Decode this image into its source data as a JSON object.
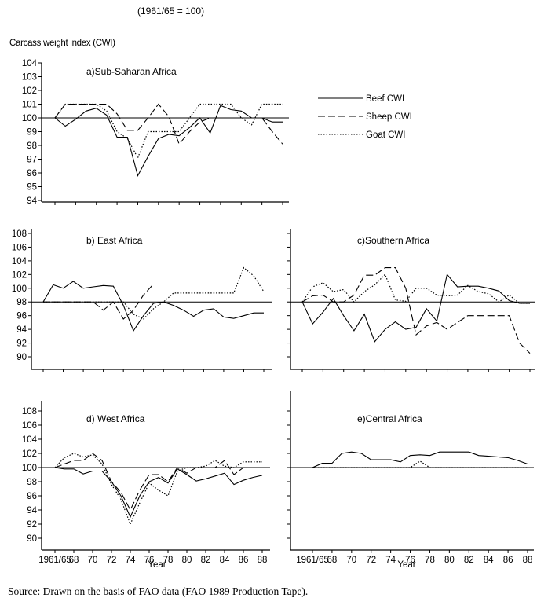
{
  "subtitle": "(1961/65 = 100)",
  "ylabel": "Carcass weight index (CWI)",
  "source": "Source: Drawn on the basis of FAO data (FAO 1989 Production Tape).",
  "legend": [
    {
      "name": "Beef CWI",
      "style": "solid"
    },
    {
      "name": "Sheep CWI",
      "style": "dashed"
    },
    {
      "name": "Goat CWI",
      "style": "dotted"
    }
  ],
  "chart_data": [
    {
      "type": "line",
      "title": "a)Sub-Saharan Africa",
      "xlabel": "",
      "ylabel": "Carcass weight index (CWI)",
      "ylim": [
        94,
        104
      ],
      "yticks": [
        "94",
        "95",
        "96",
        "97",
        "98",
        "99",
        "100",
        "101",
        "102",
        "103",
        "104"
      ],
      "reference": 100,
      "x": [
        1966,
        1967,
        1968,
        1969,
        1970,
        1971,
        1972,
        1973,
        1974,
        1975,
        1976,
        1977,
        1978,
        1979,
        1980,
        1981,
        1982,
        1983,
        1984,
        1985,
        1986,
        1987,
        1988
      ],
      "xticklabels": [],
      "series": [
        {
          "name": "Beef CWI",
          "values": [
            100,
            99.4,
            99.9,
            100.5,
            100.7,
            100.2,
            98.6,
            98.6,
            95.8,
            97.2,
            98.5,
            98.8,
            98.7,
            99.3,
            100,
            98.9,
            100.9,
            100.6,
            100.5,
            100,
            100,
            99.7,
            99.7
          ]
        },
        {
          "name": "Sheep CWI",
          "values": [
            100,
            101,
            101,
            101,
            101,
            101,
            100.3,
            99.1,
            99.1,
            100,
            101,
            100.1,
            98.1,
            99,
            99.7,
            100,
            100,
            100,
            100,
            100,
            100,
            99,
            98.1
          ]
        },
        {
          "name": "Goat CWI",
          "values": [
            100,
            101,
            101,
            101,
            101,
            100.5,
            99,
            98.5,
            97.1,
            99,
            99,
            99,
            99,
            100,
            101,
            101,
            101,
            101,
            100,
            99.5,
            101,
            101,
            101
          ]
        }
      ]
    },
    {
      "type": "line",
      "title": "b) East Africa",
      "xlabel": "",
      "ylim": [
        90,
        108
      ],
      "yticks": [
        "90",
        "92",
        "94",
        "96",
        "98",
        "100",
        "102",
        "104",
        "106",
        "108"
      ],
      "reference": 98,
      "x": [
        1966,
        1967,
        1968,
        1969,
        1970,
        1971,
        1972,
        1973,
        1974,
        1975,
        1976,
        1977,
        1978,
        1979,
        1980,
        1981,
        1982,
        1983,
        1984,
        1985,
        1986,
        1987,
        1988
      ],
      "xticklabels": [],
      "series": [
        {
          "name": "Beef CWI",
          "values": [
            98,
            100.5,
            100,
            101,
            100,
            100.2,
            100.4,
            100.3,
            97.5,
            93.8,
            96,
            97.8,
            98,
            97.5,
            96.8,
            95.9,
            96.8,
            97,
            95.8,
            95.6,
            96,
            96.4,
            96.4
          ]
        },
        {
          "name": "Sheep CWI",
          "values": [
            98,
            98,
            98,
            98,
            98,
            98,
            96.8,
            98,
            95.5,
            96.8,
            99,
            100.6,
            100.6,
            100.6,
            100.6,
            100.6,
            100.6,
            100.6,
            100.6,
            null,
            null,
            null,
            null
          ]
        },
        {
          "name": "Goat CWI",
          "values": [
            98,
            98,
            98,
            98,
            98,
            98,
            98,
            98,
            98,
            96.2,
            95.5,
            97,
            98,
            99.3,
            99.3,
            99.3,
            99.3,
            99.3,
            99.3,
            99.3,
            103,
            101.8,
            99.5
          ]
        }
      ]
    },
    {
      "type": "line",
      "title": "c)Southern Africa",
      "xlabel": "",
      "ylim": [
        90,
        108
      ],
      "yticks": [],
      "reference": 98,
      "x": [
        1966,
        1967,
        1968,
        1969,
        1970,
        1971,
        1972,
        1973,
        1974,
        1975,
        1976,
        1977,
        1978,
        1979,
        1980,
        1981,
        1982,
        1983,
        1984,
        1985,
        1986,
        1987,
        1988
      ],
      "xticklabels": [],
      "series": [
        {
          "name": "Beef CWI",
          "values": [
            98,
            94.8,
            96.5,
            98.5,
            96,
            93.8,
            96.2,
            92.2,
            94,
            95.1,
            94,
            94.3,
            97,
            95.2,
            102,
            100.2,
            100.3,
            100.3,
            100,
            99.6,
            98.2,
            97.8,
            97.8
          ]
        },
        {
          "name": "Sheep CWI",
          "values": [
            98,
            98.9,
            99,
            98,
            98,
            99,
            101.9,
            101.9,
            103,
            103,
            100,
            93.2,
            94.5,
            95,
            94,
            95,
            96,
            96,
            96,
            96,
            96,
            92,
            90.5
          ]
        },
        {
          "name": "Goat CWI",
          "values": [
            98,
            100.2,
            100.8,
            99.5,
            99.8,
            98,
            99.5,
            100.5,
            102,
            98.3,
            98.1,
            100,
            100,
            99,
            98.9,
            99,
            100.4,
            99.5,
            99.2,
            98,
            99,
            97.8,
            97.8
          ]
        }
      ]
    },
    {
      "type": "line",
      "title": "d) West Africa",
      "xlabel": "Year",
      "ylim": [
        90,
        108
      ],
      "yticks": [
        "90",
        "92",
        "94",
        "96",
        "98",
        "100",
        "102",
        "104",
        "106",
        "108"
      ],
      "reference": 100,
      "x": [
        1966,
        1967,
        1968,
        1969,
        1970,
        1971,
        1972,
        1973,
        1974,
        1975,
        1976,
        1977,
        1978,
        1979,
        1980,
        1981,
        1982,
        1983,
        1984,
        1985,
        1986,
        1987,
        1988
      ],
      "xticklabels": [
        "1961/65",
        "68",
        "70",
        "72",
        "74",
        "76",
        "78",
        "80",
        "82",
        "84",
        "86",
        "88"
      ],
      "series": [
        {
          "name": "Beef CWI",
          "values": [
            100,
            99.8,
            99.8,
            99.1,
            99.5,
            99.5,
            98,
            96,
            93,
            96,
            98,
            98.6,
            97.8,
            99.8,
            99,
            98.1,
            98.4,
            98.8,
            99.2,
            97.6,
            98.2,
            98.6,
            98.9
          ]
        },
        {
          "name": "Sheep CWI",
          "values": [
            100,
            100.5,
            101,
            101,
            102,
            101,
            98,
            96.5,
            94,
            96.8,
            99,
            99,
            98,
            100,
            99.2,
            100,
            100,
            100,
            101,
            99,
            100,
            100,
            100
          ]
        },
        {
          "name": "Goat CWI",
          "values": [
            100,
            101.4,
            102,
            101.5,
            101.8,
            100.5,
            97.6,
            95.5,
            92,
            95,
            97.8,
            96.8,
            96,
            99.5,
            100,
            100,
            100.2,
            101,
            100.2,
            100,
            100.8,
            100.8,
            100.8
          ]
        }
      ]
    },
    {
      "type": "line",
      "title": "e)Central Africa",
      "xlabel": "Year",
      "ylim": [
        90,
        108
      ],
      "yticks": [],
      "reference": 100,
      "x": [
        1966,
        1967,
        1968,
        1969,
        1970,
        1971,
        1972,
        1973,
        1974,
        1975,
        1976,
        1977,
        1978,
        1979,
        1980,
        1981,
        1982,
        1983,
        1984,
        1985,
        1986,
        1987,
        1988
      ],
      "xticklabels": [
        "1961/65",
        "68",
        "70",
        "72",
        "74",
        "76",
        "78",
        "80",
        "82",
        "84",
        "86",
        "88"
      ],
      "series": [
        {
          "name": "Beef CWI",
          "values": [
            100,
            100.6,
            100.6,
            102,
            102.2,
            102,
            101.1,
            101.1,
            101.1,
            100.8,
            101.7,
            101.8,
            101.7,
            102.2,
            102.2,
            102.2,
            102.2,
            101.7,
            101.6,
            101.5,
            101.4,
            101,
            100.5
          ]
        },
        {
          "name": "Sheep CWI",
          "values": [
            100,
            100,
            100,
            100,
            100,
            100,
            100,
            100,
            100,
            100,
            100,
            100,
            100,
            100,
            100,
            100,
            100,
            100,
            100,
            100,
            100,
            100,
            100
          ]
        },
        {
          "name": "Goat CWI",
          "values": [
            100,
            100,
            100,
            100,
            100,
            100,
            100,
            100,
            100,
            100,
            100,
            100.9,
            100,
            100,
            100,
            100,
            100,
            100,
            100,
            100,
            100,
            100,
            100
          ]
        }
      ]
    }
  ]
}
